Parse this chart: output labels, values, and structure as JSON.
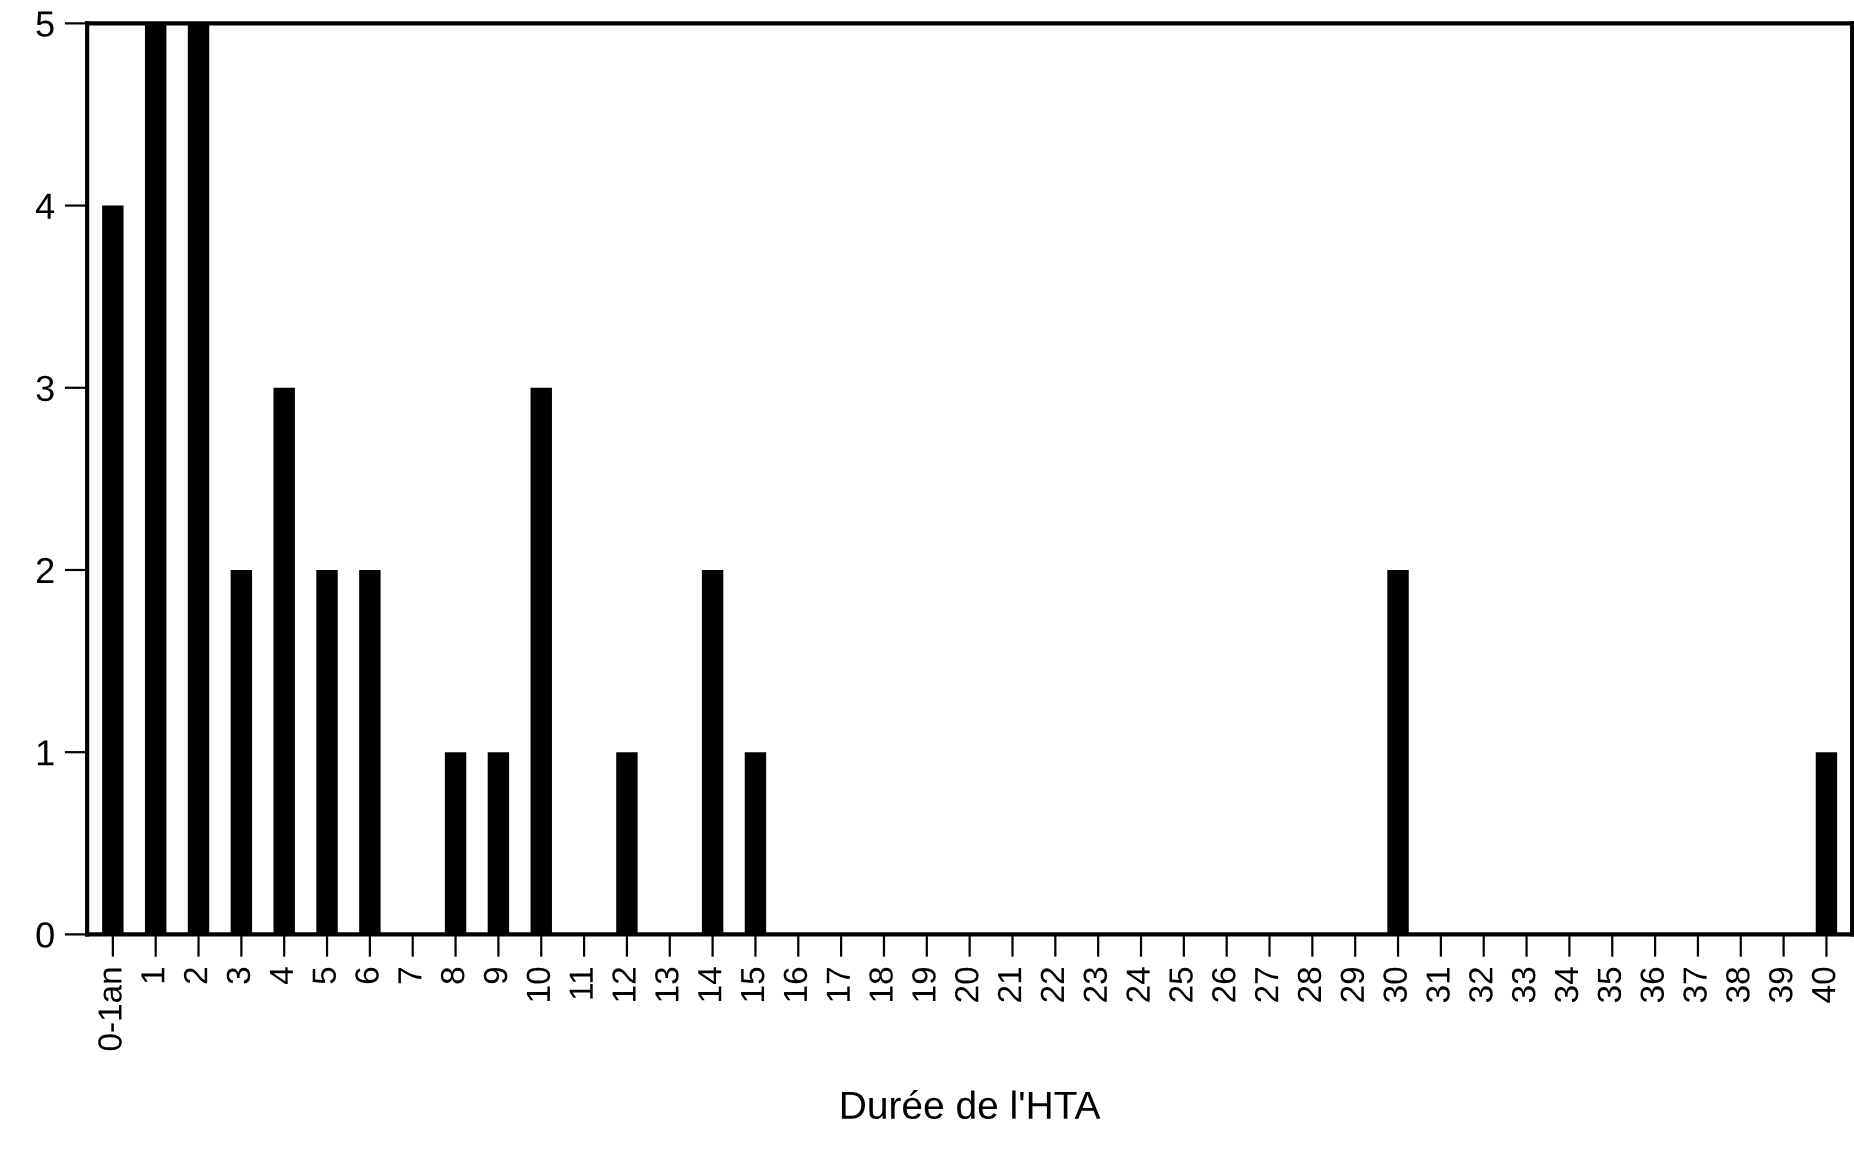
{
  "chart_data": {
    "type": "bar",
    "xlabel": "Durée de l'HTA",
    "categories": [
      "0-1an",
      "1",
      "2",
      "3",
      "4",
      "5",
      "6",
      "7",
      "8",
      "9",
      "10",
      "11",
      "12",
      "13",
      "14",
      "15",
      "16",
      "17",
      "18",
      "19",
      "20",
      "21",
      "22",
      "23",
      "24",
      "25",
      "26",
      "27",
      "28",
      "29",
      "30",
      "31",
      "32",
      "33",
      "34",
      "35",
      "36",
      "37",
      "38",
      "39",
      "40"
    ],
    "values": [
      4,
      5,
      5,
      2,
      3,
      2,
      2,
      0,
      1,
      1,
      3,
      0,
      1,
      0,
      2,
      1,
      0,
      0,
      0,
      0,
      0,
      0,
      0,
      0,
      0,
      0,
      0,
      0,
      0,
      0,
      2,
      0,
      0,
      0,
      0,
      0,
      0,
      0,
      0,
      0,
      1
    ],
    "color": "#000000",
    "ylim": [
      0,
      5
    ],
    "yticks": [
      0,
      1,
      2,
      3,
      4,
      5
    ],
    "grid": false
  }
}
